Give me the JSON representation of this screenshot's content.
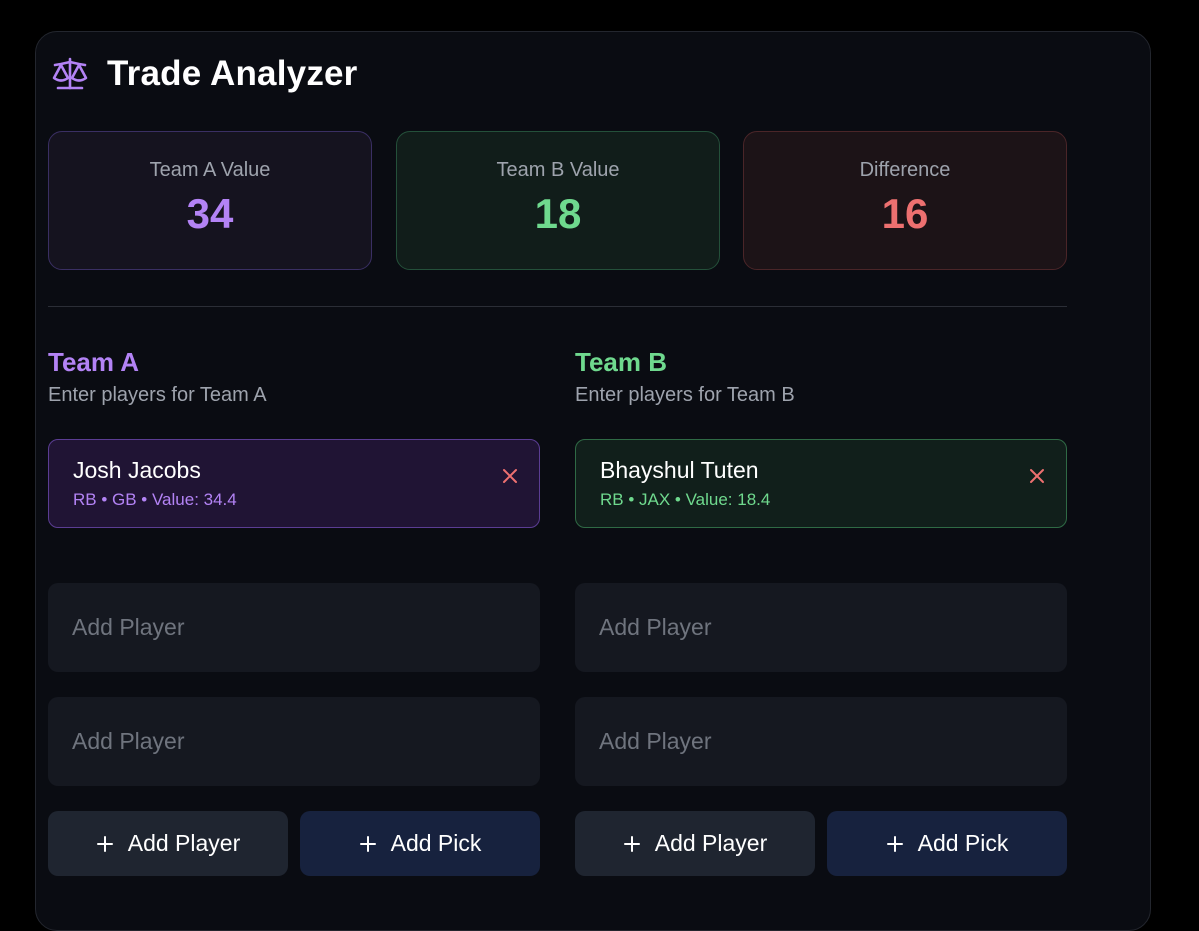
{
  "header": {
    "icon": "scale-icon",
    "title": "Trade Analyzer",
    "accent": "#b383f5"
  },
  "stats": {
    "team_a": {
      "label": "Team A Value",
      "value": "34",
      "color": "#b383f5"
    },
    "team_b": {
      "label": "Team B Value",
      "value": "18",
      "color": "#6fd98e"
    },
    "difference": {
      "label": "Difference",
      "value": "16",
      "color": "#ed7070"
    }
  },
  "teams": {
    "a": {
      "title": "Team A",
      "subtitle": "Enter players for Team A",
      "player": {
        "name": "Josh Jacobs",
        "meta": "RB • GB • Value: 34.4"
      },
      "slots": [
        {
          "placeholder": "Add Player"
        },
        {
          "placeholder": "Add Player"
        }
      ],
      "add_player_label": "Add Player",
      "add_pick_label": "Add Pick"
    },
    "b": {
      "title": "Team B",
      "subtitle": "Enter players for Team B",
      "player": {
        "name": "Bhayshul Tuten",
        "meta": "RB • JAX • Value: 18.4"
      },
      "slots": [
        {
          "placeholder": "Add Player"
        },
        {
          "placeholder": "Add Player"
        }
      ],
      "add_player_label": "Add Player",
      "add_pick_label": "Add Pick"
    }
  },
  "icons": {
    "remove": "close-icon",
    "add": "plus-icon"
  },
  "colors": {
    "remove_icon": "#ed7070"
  }
}
